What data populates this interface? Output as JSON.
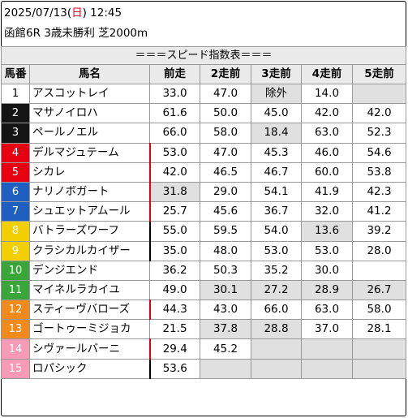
{
  "header": {
    "date": "2025/07/13",
    "weekday_open": "(",
    "weekday": "日",
    "weekday_close": ")",
    "time": "12:45",
    "race_info": "函館6R 3歳未勝利 芝2000m"
  },
  "table_title": "＝＝＝スピード指数表＝＝＝",
  "columns": [
    "馬番",
    "馬名",
    "前走",
    "2走前",
    "3走前",
    "4走前",
    "5走前"
  ],
  "colors": {
    "frame_white": "#ffffff",
    "frame_black": "#141414",
    "frame_red": "#e60012",
    "frame_blue": "#1f5fbf",
    "frame_yellow": "#f1cf00",
    "frame_green": "#3aa63a",
    "frame_orange": "#f08a1c",
    "frame_pink": "#f79ab5",
    "highlight_gray": "#e0e0e0",
    "marker_red": "#e60012",
    "marker_black": "#000000"
  },
  "rows": [
    {
      "no": "1",
      "name": "アスコットレイ",
      "v": [
        "33.0",
        "47.0",
        "除外",
        "14.0",
        ""
      ]
    },
    {
      "no": "2",
      "name": "マサノイロハ",
      "v": [
        "61.6",
        "50.0",
        "45.0",
        "42.0",
        "42.0"
      ]
    },
    {
      "no": "3",
      "name": "ペールノエル",
      "v": [
        "66.0",
        "58.0",
        "18.4",
        "63.0",
        "52.3"
      ]
    },
    {
      "no": "4",
      "name": "デルマジュテーム",
      "v": [
        "53.0",
        "47.0",
        "45.3",
        "46.0",
        "54.6"
      ]
    },
    {
      "no": "5",
      "name": "シカレ",
      "v": [
        "42.0",
        "46.5",
        "46.7",
        "60.0",
        "53.8"
      ]
    },
    {
      "no": "6",
      "name": "ナリノボガート",
      "v": [
        "31.8",
        "29.0",
        "54.1",
        "41.9",
        "42.3"
      ]
    },
    {
      "no": "7",
      "name": "シュエットアムール",
      "v": [
        "25.7",
        "45.6",
        "36.7",
        "32.0",
        "41.2"
      ]
    },
    {
      "no": "8",
      "name": "バトラーズワーフ",
      "v": [
        "55.0",
        "59.5",
        "54.0",
        "13.6",
        "39.2"
      ]
    },
    {
      "no": "9",
      "name": "クラシカルカイザー",
      "v": [
        "35.0",
        "48.0",
        "53.0",
        "53.0",
        "28.0"
      ]
    },
    {
      "no": "10",
      "name": "デンジエンド",
      "v": [
        "36.2",
        "50.3",
        "35.2",
        "30.0",
        ""
      ]
    },
    {
      "no": "11",
      "name": "マイネルラカイユ",
      "v": [
        "49.0",
        "30.1",
        "27.2",
        "28.9",
        "26.7"
      ]
    },
    {
      "no": "12",
      "name": "スティーヴバローズ",
      "v": [
        "44.3",
        "43.0",
        "66.0",
        "63.0",
        "58.0"
      ]
    },
    {
      "no": "13",
      "name": "ゴートゥーミジョカ",
      "v": [
        "21.5",
        "37.8",
        "28.8",
        "37.0",
        "28.1"
      ]
    },
    {
      "no": "14",
      "name": "シヴァールバーニ",
      "v": [
        "29.4",
        "45.2",
        "",
        "",
        ""
      ]
    },
    {
      "no": "15",
      "name": "ロパシック",
      "v": [
        "53.6",
        "",
        "",
        "",
        ""
      ]
    }
  ]
}
